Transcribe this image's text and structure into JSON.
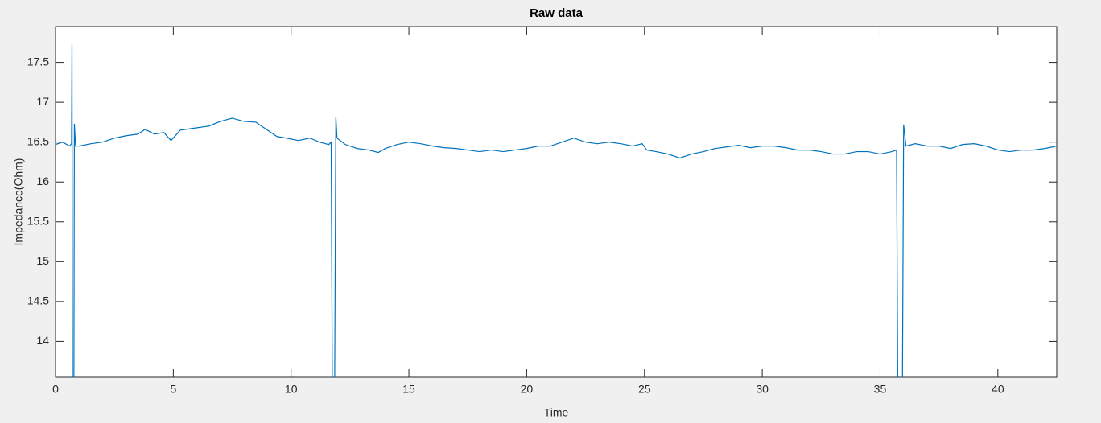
{
  "chart_data": {
    "type": "line",
    "title": "Raw data",
    "x_label": "Time",
    "y_label": "Impedance(Ohm)",
    "color": "#0072bd",
    "grid": false,
    "xlim": [
      0,
      42.5
    ],
    "ylim": [
      13.55,
      17.95
    ],
    "xticks": [
      0,
      5,
      10,
      15,
      20,
      25,
      30,
      35,
      40
    ],
    "yticks": [
      14,
      14.5,
      15,
      15.5,
      16,
      16.5,
      17,
      17.5
    ],
    "x": [
      0,
      0.3,
      0.6,
      0.68,
      0.7,
      0.72,
      0.78,
      0.8,
      0.85,
      1,
      1.5,
      2,
      2.5,
      3,
      3.5,
      3.8,
      4.2,
      4.6,
      4.9,
      5.3,
      6,
      6.5,
      7,
      7.5,
      8,
      8.5,
      9,
      9.4,
      9.8,
      10.3,
      10.8,
      11.2,
      11.6,
      11.7,
      11.75,
      11.85,
      11.9,
      11.95,
      12.3,
      12.8,
      13.3,
      13.7,
      14,
      14.5,
      15,
      15.5,
      16,
      16.5,
      17,
      17.5,
      18,
      18.5,
      19,
      19.5,
      20,
      20.5,
      21,
      21.5,
      22,
      22.5,
      23,
      23.5,
      24,
      24.5,
      24.9,
      25.1,
      25.5,
      26,
      26.5,
      27,
      27.5,
      28,
      28.5,
      29,
      29.5,
      30,
      30.5,
      31,
      31.5,
      32,
      32.5,
      33,
      33.5,
      34,
      34.5,
      35,
      35.5,
      35.7,
      35.75,
      35.95,
      36,
      36.1,
      36.5,
      37,
      37.5,
      38,
      38.5,
      39,
      39.5,
      40,
      40.5,
      41,
      41.5,
      42,
      42.5
    ],
    "values": [
      16.47,
      16.5,
      16.45,
      16.48,
      17.72,
      13.5,
      13.5,
      16.73,
      16.45,
      16.45,
      16.48,
      16.5,
      16.55,
      16.58,
      16.6,
      16.66,
      16.6,
      16.62,
      16.52,
      16.65,
      16.68,
      16.7,
      16.76,
      16.8,
      16.76,
      16.75,
      16.65,
      16.57,
      16.55,
      16.52,
      16.55,
      16.5,
      16.47,
      16.5,
      13.5,
      13.5,
      16.82,
      16.55,
      16.47,
      16.42,
      16.4,
      16.37,
      16.42,
      16.47,
      16.5,
      16.48,
      16.45,
      16.43,
      16.42,
      16.4,
      16.38,
      16.4,
      16.38,
      16.4,
      16.42,
      16.45,
      16.45,
      16.5,
      16.55,
      16.5,
      16.48,
      16.5,
      16.48,
      16.45,
      16.48,
      16.4,
      16.38,
      16.35,
      16.3,
      16.35,
      16.38,
      16.42,
      16.44,
      16.46,
      16.43,
      16.45,
      16.45,
      16.43,
      16.4,
      16.4,
      16.38,
      16.35,
      16.35,
      16.38,
      16.38,
      16.35,
      16.38,
      16.4,
      13.5,
      13.5,
      16.72,
      16.45,
      16.48,
      16.45,
      16.45,
      16.42,
      16.47,
      16.48,
      16.45,
      16.4,
      16.38,
      16.4,
      16.4,
      16.42,
      16.45
    ]
  }
}
